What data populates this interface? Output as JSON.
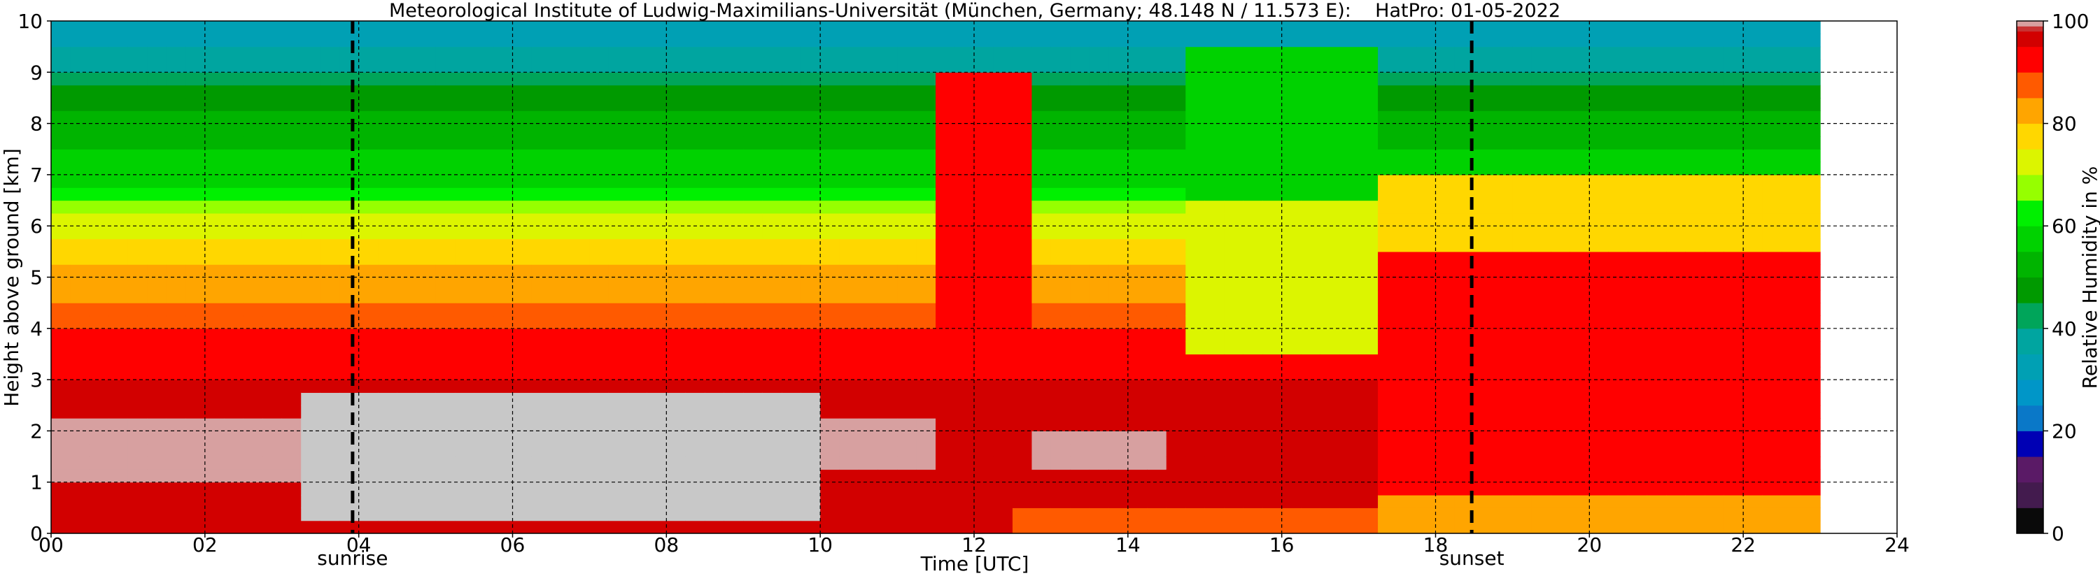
{
  "chart_data": {
    "type": "heatmap",
    "title": "Meteorological Institute of Ludwig-Maximilians-Universität (München, Germany; 48.148 N / 11.573 E):    HatPro: 01-05-2022",
    "xlabel": "Time [UTC]",
    "ylabel": "Height above ground [km]",
    "colorbar_label": "Relative Humidity in %",
    "xlim": [
      0,
      24
    ],
    "ylim": [
      0,
      10
    ],
    "data_end_hour": 23.0,
    "x_ticks": [
      "00",
      "02",
      "04",
      "06",
      "08",
      "10",
      "12",
      "14",
      "16",
      "18",
      "20",
      "22",
      "24"
    ],
    "y_ticks": [
      "0",
      "1",
      "2",
      "3",
      "4",
      "5",
      "6",
      "7",
      "8",
      "9",
      "10"
    ],
    "colorbar_ticks": [
      "0",
      "20",
      "40",
      "60",
      "80",
      "100"
    ],
    "colorbar_range": [
      0,
      100
    ],
    "grid": true,
    "annotations": [
      {
        "label": "sunrise",
        "hour": 3.92
      },
      {
        "label": "sunset",
        "hour": 18.47
      }
    ],
    "colormap": [
      {
        "from": 0,
        "to": 5,
        "color": "#0a0a0a"
      },
      {
        "from": 5,
        "to": 10,
        "color": "#431b4e"
      },
      {
        "from": 10,
        "to": 15,
        "color": "#5a1a66"
      },
      {
        "from": 15,
        "to": 20,
        "color": "#0000b4"
      },
      {
        "from": 20,
        "to": 25,
        "color": "#0a78c8"
      },
      {
        "from": 25,
        "to": 30,
        "color": "#0096c8"
      },
      {
        "from": 30,
        "to": 35,
        "color": "#00a0b4"
      },
      {
        "from": 35,
        "to": 40,
        "color": "#00a5a0"
      },
      {
        "from": 40,
        "to": 45,
        "color": "#00a55a"
      },
      {
        "from": 45,
        "to": 50,
        "color": "#009a00"
      },
      {
        "from": 50,
        "to": 55,
        "color": "#00b400"
      },
      {
        "from": 55,
        "to": 60,
        "color": "#00d200"
      },
      {
        "from": 60,
        "to": 65,
        "color": "#00f000"
      },
      {
        "from": 65,
        "to": 70,
        "color": "#96ff00"
      },
      {
        "from": 70,
        "to": 75,
        "color": "#dcf500"
      },
      {
        "from": 75,
        "to": 80,
        "color": "#ffd700"
      },
      {
        "from": 80,
        "to": 85,
        "color": "#ffa500"
      },
      {
        "from": 85,
        "to": 90,
        "color": "#ff5a00"
      },
      {
        "from": 90,
        "to": 95,
        "color": "#ff0000"
      },
      {
        "from": 95,
        "to": 98,
        "color": "#d20000"
      },
      {
        "from": 98,
        "to": 99,
        "color": "#c83232"
      },
      {
        "from": 99,
        "to": 100,
        "color": "#d7a0a0"
      },
      {
        "from": 100,
        "to": 101,
        "color": "#c8c8c8"
      }
    ],
    "base_profile": [
      {
        "h": 0.0,
        "rh": 95
      },
      {
        "h": 1.0,
        "rh": 97
      },
      {
        "h": 2.0,
        "rh": 97
      },
      {
        "h": 3.0,
        "rh": 95
      },
      {
        "h": 3.5,
        "rh": 93
      },
      {
        "h": 4.0,
        "rh": 90
      },
      {
        "h": 4.5,
        "rh": 86
      },
      {
        "h": 5.0,
        "rh": 81
      },
      {
        "h": 5.5,
        "rh": 77
      },
      {
        "h": 6.0,
        "rh": 72
      },
      {
        "h": 6.5,
        "rh": 65
      },
      {
        "h": 7.0,
        "rh": 58
      },
      {
        "h": 7.5,
        "rh": 55
      },
      {
        "h": 8.0,
        "rh": 52
      },
      {
        "h": 8.5,
        "rh": 47
      },
      {
        "h": 9.0,
        "rh": 40
      },
      {
        "h": 9.5,
        "rh": 35
      },
      {
        "h": 10.0,
        "rh": 30
      }
    ],
    "features": [
      {
        "name": "saturated-layer-early",
        "t0": 0.0,
        "t1": 3.2,
        "h0": 0.9,
        "h1": 2.2,
        "rh": 99
      },
      {
        "name": "saturated-layer-main",
        "t0": 3.2,
        "t1": 10.0,
        "h0": 0.15,
        "h1": 2.7,
        "rh": 100
      },
      {
        "name": "saturated-layer-1030",
        "t0": 10.0,
        "t1": 11.5,
        "h0": 1.2,
        "h1": 2.2,
        "rh": 99
      },
      {
        "name": "saturated-layer-1300",
        "t0": 12.8,
        "t1": 14.5,
        "h0": 1.3,
        "h1": 2.1,
        "rh": 99
      },
      {
        "name": "moist-column-1150",
        "t0": 11.5,
        "t1": 12.7,
        "h0": 4.0,
        "h1": 9.0,
        "rh": 90
      },
      {
        "name": "dry-surface-afternoon",
        "t0": 12.5,
        "t1": 17.2,
        "h0": 0.0,
        "h1": 0.6,
        "rh": 86
      },
      {
        "name": "dry-mid-afternoon",
        "t0": 14.7,
        "t1": 17.2,
        "h0": 3.5,
        "h1": 6.5,
        "rh": 72
      },
      {
        "name": "dry-upper-afternoon",
        "t0": 14.7,
        "t1": 17.2,
        "h0": 6.5,
        "h1": 9.5,
        "rh": 55
      },
      {
        "name": "moist-evening",
        "t0": 17.2,
        "t1": 23.0,
        "h0": 0.8,
        "h1": 5.5,
        "rh": 94
      },
      {
        "name": "evening-surface",
        "t0": 17.2,
        "t1": 23.0,
        "h0": 0.0,
        "h1": 0.8,
        "rh": 84
      },
      {
        "name": "evening-upper",
        "t0": 17.2,
        "t1": 23.0,
        "h0": 5.5,
        "h1": 7.0,
        "rh": 79
      }
    ]
  }
}
